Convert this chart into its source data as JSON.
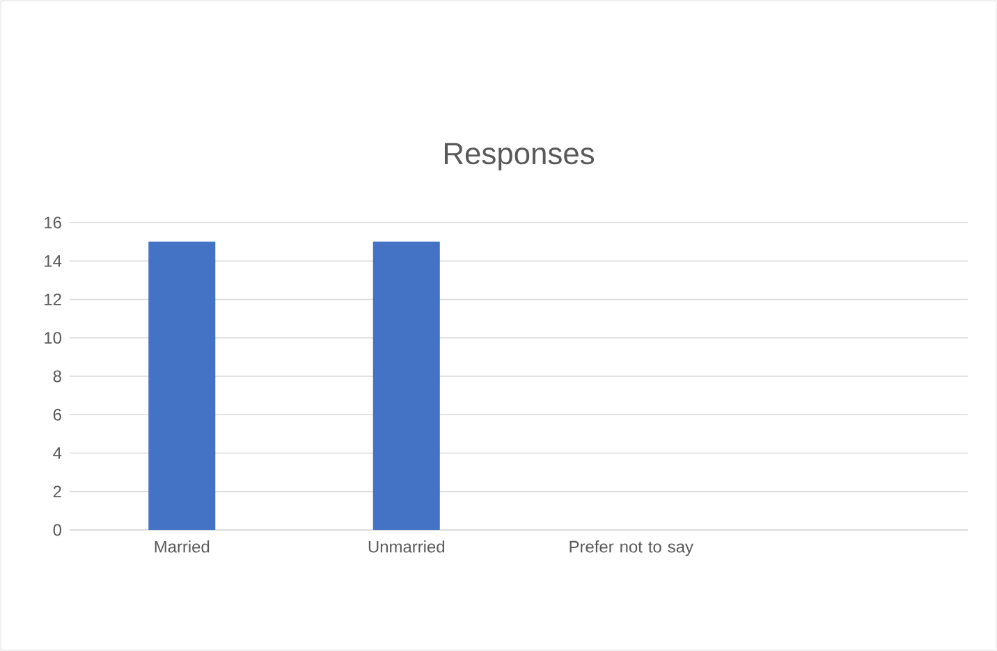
{
  "chart_data": {
    "type": "bar",
    "title": "Responses",
    "categories": [
      "Married",
      "Unmarried",
      "Prefer not to say",
      null
    ],
    "values": [
      15,
      15,
      0,
      0
    ],
    "color": "#4472c4",
    "ylim": [
      0,
      16
    ],
    "yticks": [
      0,
      2,
      4,
      6,
      8,
      10,
      12,
      14,
      16
    ],
    "grid": "y"
  }
}
